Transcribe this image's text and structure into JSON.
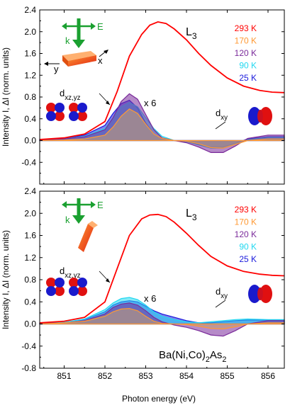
{
  "chart_data": [
    {
      "type": "area",
      "panel": "top",
      "edge_label": {
        "base": "L",
        "sub": "3"
      },
      "ylabel": "Intensity I, ΔI (norm. units)",
      "xlabel": "",
      "xlim": [
        850.4,
        856.4
      ],
      "ylim": [
        -0.8,
        2.4
      ],
      "xticks": [
        851,
        852,
        853,
        854,
        855,
        856
      ],
      "yticks": [
        -0.8,
        -0.4,
        0.0,
        0.4,
        0.8,
        1.2,
        1.6,
        2.0,
        2.4
      ],
      "ytick_labels": [
        "",
        "-0.4",
        "0.0",
        "0.4",
        "0.8",
        "1.2",
        "1.6",
        "2.0",
        "2.4"
      ],
      "legend": {
        "position": "top-right",
        "entries": [
          {
            "label": "293 K",
            "color": "#ff0000"
          },
          {
            "label": "170 K",
            "color": "#ff9933"
          },
          {
            "label": "120 K",
            "color": "#7a2a9a"
          },
          {
            "label": "90 K",
            "color": "#22d8f0"
          },
          {
            "label": "25 K",
            "color": "#1a1adc"
          }
        ]
      },
      "annotations": [
        {
          "base": "d",
          "sub": "xz,yz"
        },
        {
          "text": "x 6"
        },
        {
          "base": "d",
          "sub": "xy"
        }
      ],
      "geometry_labels": {
        "E": "E",
        "k": "k",
        "x": "x",
        "y": "y"
      },
      "intensity_293K": {
        "x": [
          850.4,
          851.0,
          851.5,
          852.0,
          852.3,
          852.6,
          852.9,
          853.1,
          853.3,
          853.5,
          853.7,
          854.0,
          854.3,
          854.6,
          855.0,
          855.4,
          855.8,
          856.1,
          856.4
        ],
        "y": [
          0.02,
          0.05,
          0.12,
          0.35,
          0.9,
          1.55,
          1.95,
          2.12,
          2.18,
          2.15,
          2.05,
          1.85,
          1.6,
          1.38,
          1.15,
          1.0,
          0.92,
          0.89,
          0.88
        ]
      },
      "series": [
        {
          "name": "25 K",
          "x": [
            850.4,
            851.0,
            851.5,
            852.0,
            852.2,
            852.4,
            852.6,
            852.8,
            853.0,
            853.2,
            853.4,
            853.7,
            854.0,
            854.3,
            854.6,
            854.9,
            855.2,
            855.5,
            856.0,
            856.4
          ],
          "y": [
            0.02,
            0.04,
            0.1,
            0.28,
            0.5,
            0.68,
            0.74,
            0.6,
            0.32,
            0.12,
            0.04,
            0.0,
            -0.02,
            -0.07,
            -0.12,
            -0.12,
            -0.05,
            0.03,
            0.07,
            0.07
          ]
        },
        {
          "name": "90 K",
          "x": [
            850.4,
            851.0,
            851.5,
            852.0,
            852.2,
            852.4,
            852.6,
            852.8,
            853.0,
            853.2,
            853.4,
            853.7,
            854.0,
            854.3,
            854.6,
            854.9,
            855.2,
            855.5,
            856.0,
            856.4
          ],
          "y": [
            0.01,
            0.03,
            0.08,
            0.22,
            0.42,
            0.62,
            0.7,
            0.62,
            0.42,
            0.22,
            0.08,
            0.0,
            -0.02,
            -0.08,
            -0.14,
            -0.14,
            -0.07,
            0.02,
            0.06,
            0.06
          ]
        },
        {
          "name": "120 K",
          "x": [
            850.4,
            851.0,
            851.5,
            852.0,
            852.2,
            852.4,
            852.6,
            852.8,
            853.0,
            853.2,
            853.4,
            853.7,
            854.0,
            854.3,
            854.6,
            854.9,
            855.2,
            855.5,
            856.0,
            856.4
          ],
          "y": [
            0.01,
            0.03,
            0.07,
            0.2,
            0.42,
            0.72,
            0.86,
            0.76,
            0.48,
            0.2,
            0.05,
            0.0,
            -0.04,
            -0.12,
            -0.22,
            -0.22,
            -0.1,
            0.04,
            0.1,
            0.1
          ]
        },
        {
          "name": "170 K",
          "x": [
            850.4,
            851.0,
            851.5,
            852.0,
            852.2,
            852.4,
            852.6,
            852.8,
            853.0,
            853.2,
            853.4,
            853.7,
            854.0,
            854.3,
            854.6,
            854.9,
            855.2,
            855.5,
            856.0,
            856.4
          ],
          "y": [
            0.0,
            0.01,
            0.03,
            0.1,
            0.25,
            0.45,
            0.58,
            0.5,
            0.3,
            0.12,
            0.04,
            0.0,
            -0.01,
            -0.06,
            -0.13,
            -0.14,
            -0.07,
            0.0,
            0.03,
            0.03
          ]
        }
      ]
    },
    {
      "type": "area",
      "panel": "bottom",
      "edge_label": {
        "base": "L",
        "sub": "3"
      },
      "ylabel": "Intensity I, ΔI (norm. units)",
      "xlabel": "Photon energy (eV)",
      "xlim": [
        850.4,
        856.4
      ],
      "ylim": [
        -0.8,
        2.4
      ],
      "xticks": [
        851,
        852,
        853,
        854,
        855,
        856
      ],
      "xtick_labels": [
        "851",
        "852",
        "853",
        "854",
        "855",
        "856"
      ],
      "yticks": [
        -0.8,
        -0.4,
        0.0,
        0.4,
        0.8,
        1.2,
        1.6,
        2.0,
        2.4
      ],
      "ytick_labels": [
        "-0.8",
        "-0.4",
        "0.0",
        "0.4",
        "0.8",
        "1.2",
        "1.6",
        "2.0",
        "2.4"
      ],
      "legend": {
        "position": "top-right",
        "entries": [
          {
            "label": "293 K",
            "color": "#ff0000"
          },
          {
            "label": "170 K",
            "color": "#ff9933"
          },
          {
            "label": "120 K",
            "color": "#7a2a9a"
          },
          {
            "label": "90 K",
            "color": "#22d8f0"
          },
          {
            "label": "25 K",
            "color": "#1a1adc"
          }
        ]
      },
      "annotations": [
        {
          "base": "d",
          "sub": "xz,yz"
        },
        {
          "text": "x 6"
        },
        {
          "base": "d",
          "sub": "xy"
        }
      ],
      "compound": {
        "parts": [
          "Ba(Ni,Co)",
          "2",
          "As",
          "2"
        ]
      },
      "geometry_labels": {
        "E": "E",
        "k": "k"
      },
      "intensity_293K": {
        "x": [
          850.4,
          851.0,
          851.5,
          852.0,
          852.3,
          852.6,
          852.9,
          853.1,
          853.3,
          853.5,
          853.7,
          854.0,
          854.3,
          854.6,
          855.0,
          855.4,
          855.8,
          856.1,
          856.4
        ],
        "y": [
          0.02,
          0.05,
          0.12,
          0.4,
          1.0,
          1.6,
          1.9,
          1.97,
          1.98,
          1.94,
          1.84,
          1.64,
          1.42,
          1.22,
          1.05,
          0.95,
          0.9,
          0.88,
          0.87
        ]
      },
      "series": [
        {
          "name": "25 K",
          "x": [
            850.4,
            851.0,
            851.5,
            852.0,
            852.2,
            852.4,
            852.6,
            852.8,
            853.0,
            853.2,
            853.4,
            853.7,
            854.0,
            854.3,
            854.6,
            854.9,
            855.2,
            855.5,
            856.0,
            856.4
          ],
          "y": [
            0.01,
            0.03,
            0.08,
            0.22,
            0.34,
            0.4,
            0.42,
            0.4,
            0.32,
            0.24,
            0.18,
            0.12,
            0.06,
            0.02,
            0.02,
            0.04,
            0.06,
            0.07,
            0.07,
            0.07
          ]
        },
        {
          "name": "90 K",
          "x": [
            850.4,
            851.0,
            851.5,
            852.0,
            852.2,
            852.4,
            852.6,
            852.8,
            853.0,
            853.2,
            853.4,
            853.7,
            854.0,
            854.3,
            854.6,
            854.9,
            855.2,
            855.5,
            856.0,
            856.4
          ],
          "y": [
            0.01,
            0.03,
            0.09,
            0.26,
            0.38,
            0.46,
            0.48,
            0.44,
            0.34,
            0.22,
            0.14,
            0.08,
            0.04,
            0.02,
            0.04,
            0.06,
            0.08,
            0.09,
            0.08,
            0.08
          ]
        },
        {
          "name": "120 K",
          "x": [
            850.4,
            851.0,
            851.5,
            852.0,
            852.2,
            852.4,
            852.6,
            852.8,
            853.0,
            853.2,
            853.4,
            853.7,
            854.0,
            854.3,
            854.6,
            854.9,
            855.2,
            855.5,
            856.0,
            856.4
          ],
          "y": [
            0.01,
            0.02,
            0.06,
            0.18,
            0.3,
            0.36,
            0.38,
            0.34,
            0.24,
            0.12,
            0.04,
            -0.02,
            -0.06,
            -0.12,
            -0.2,
            -0.22,
            -0.12,
            0.0,
            0.06,
            0.06
          ]
        },
        {
          "name": "170 K",
          "x": [
            850.4,
            851.0,
            851.5,
            852.0,
            852.2,
            852.4,
            852.6,
            852.8,
            853.0,
            853.2,
            853.4,
            853.7,
            854.0,
            854.3,
            854.6,
            854.9,
            855.2,
            855.5,
            856.0,
            856.4
          ],
          "y": [
            0.0,
            0.02,
            0.05,
            0.14,
            0.22,
            0.27,
            0.28,
            0.24,
            0.14,
            0.05,
            0.01,
            0.0,
            -0.01,
            -0.04,
            -0.08,
            -0.09,
            -0.05,
            0.0,
            0.02,
            0.02
          ]
        }
      ]
    }
  ]
}
